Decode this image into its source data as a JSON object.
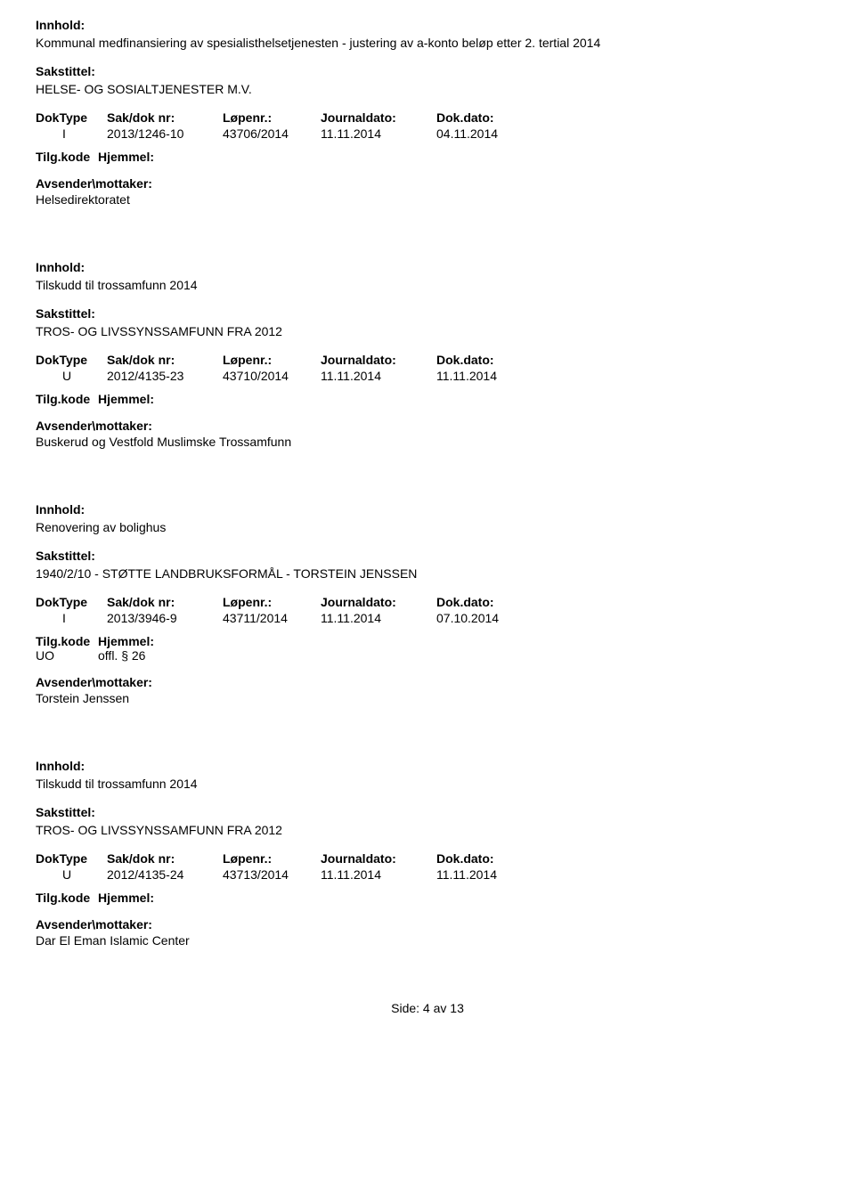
{
  "labels": {
    "innhold": "Innhold:",
    "sakstittel": "Sakstittel:",
    "doktype": "DokType",
    "sakdoknr": "Sak/dok nr:",
    "lopenr": "Løpenr.:",
    "journaldato": "Journaldato:",
    "dokdato": "Dok.dato:",
    "tilgkode": "Tilg.kode",
    "hjemmel": "Hjemmel:",
    "avsender": "Avsender\\mottaker:"
  },
  "records": [
    {
      "innhold": "Kommunal medfinansiering av spesialisthelsetjenesten - justering av a-konto beløp etter 2. tertial 2014",
      "sakstittel": "HELSE- OG SOSIALTJENESTER M.V.",
      "doktype": "I",
      "sakdoknr": "2013/1246-10",
      "lopenr": "43706/2014",
      "journaldato": "11.11.2014",
      "dokdato": "04.11.2014",
      "tilgkode": "",
      "hjemmel": "",
      "avsender": "Helsedirektoratet"
    },
    {
      "innhold": "Tilskudd til trossamfunn 2014",
      "sakstittel": "TROS- OG LIVSSYNSSAMFUNN FRA 2012",
      "doktype": "U",
      "sakdoknr": "2012/4135-23",
      "lopenr": "43710/2014",
      "journaldato": "11.11.2014",
      "dokdato": "11.11.2014",
      "tilgkode": "",
      "hjemmel": "",
      "avsender": "Buskerud og Vestfold Muslimske Trossamfunn"
    },
    {
      "innhold": "Renovering av bolighus",
      "sakstittel": "1940/2/10 - STØTTE LANDBRUKSFORMÅL - TORSTEIN JENSSEN",
      "doktype": "I",
      "sakdoknr": "2013/3946-9",
      "lopenr": "43711/2014",
      "journaldato": "11.11.2014",
      "dokdato": "07.10.2014",
      "tilgkode": "UO",
      "hjemmel": "offl. § 26",
      "avsender": "Torstein Jenssen"
    },
    {
      "innhold": "Tilskudd til trossamfunn 2014",
      "sakstittel": "TROS- OG LIVSSYNSSAMFUNN FRA 2012",
      "doktype": "U",
      "sakdoknr": "2012/4135-24",
      "lopenr": "43713/2014",
      "journaldato": "11.11.2014",
      "dokdato": "11.11.2014",
      "tilgkode": "",
      "hjemmel": "",
      "avsender": "Dar El Eman Islamic Center"
    }
  ],
  "footer": {
    "text": "Side: 4 av  13"
  }
}
